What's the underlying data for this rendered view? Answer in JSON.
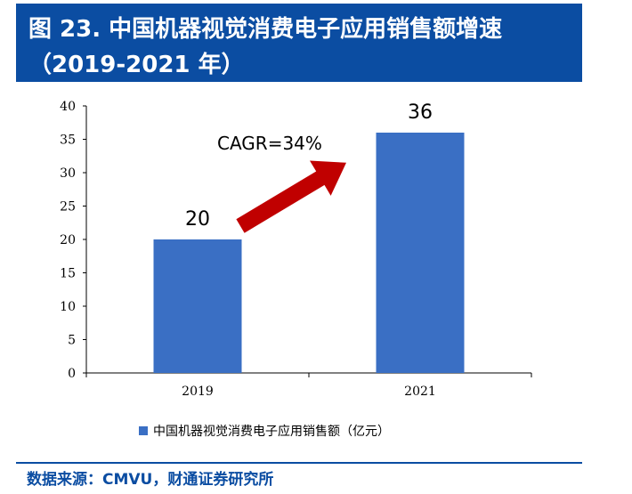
{
  "title": {
    "line1": "图 23. 中国机器视觉消费电子应用销售额增速",
    "line2": "（2019-2021 年）"
  },
  "colors": {
    "title_bg": "#0b4da2",
    "bar": "#3a6fc4",
    "arrow": "#c00000",
    "source_text": "#0b4da2"
  },
  "chart_data": {
    "type": "bar",
    "categories": [
      "2019",
      "2021"
    ],
    "series": [
      {
        "name": "中国机器视觉消费电子应用销售额（亿元）",
        "values": [
          20,
          36
        ]
      }
    ],
    "data_labels": [
      "20",
      "36"
    ],
    "ylim": [
      0,
      40
    ],
    "yticks": [
      0,
      5,
      10,
      15,
      20,
      25,
      30,
      35,
      40
    ],
    "grid": false,
    "legend_position": "bottom",
    "annotation": {
      "text": "CAGR=34%",
      "arrow_from": {
        "category": "2019",
        "value": 22
      },
      "arrow_to": {
        "category": "2021",
        "value": 31.5
      }
    }
  },
  "source": "数据来源：CMVU，财通证券研究所"
}
